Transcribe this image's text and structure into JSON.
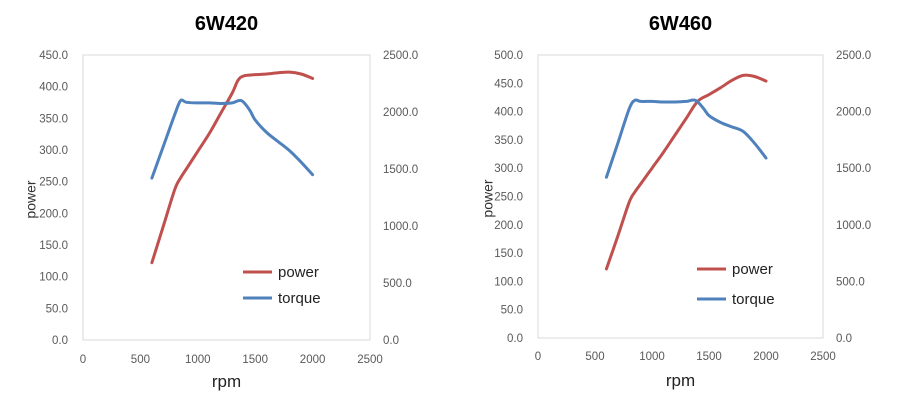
{
  "chart_data": [
    {
      "type": "line",
      "title": "6W420",
      "xlabel": "rpm",
      "ylabel": "power",
      "xlim": [
        0,
        2500
      ],
      "ylim": [
        0,
        450
      ],
      "y2lim": [
        0,
        2500
      ],
      "xtick_labels": [
        "0",
        "500",
        "1000",
        "1500",
        "2000",
        "2500"
      ],
      "ytick_labels": [
        "0.0",
        "50.0",
        "100.0",
        "150.0",
        "200.0",
        "250.0",
        "300.0",
        "350.0",
        "400.0",
        "450.0"
      ],
      "y2tick_labels": [
        "0.0",
        "500.0",
        "1000.0",
        "1500.0",
        "2000.0",
        "2500.0"
      ],
      "grid": false,
      "legend": "inside-lower-right",
      "series": [
        {
          "name": "power",
          "axis": "left",
          "color": "#c0504d",
          "x": [
            600,
            700,
            800,
            850,
            900,
            1000,
            1100,
            1200,
            1300,
            1350,
            1400,
            1500,
            1600,
            1700,
            1800,
            1900,
            2000
          ],
          "y": [
            122,
            180,
            238,
            256,
            270,
            298,
            326,
            358,
            390,
            410,
            417,
            419,
            420,
            422,
            423,
            420,
            413
          ]
        },
        {
          "name": "torque",
          "axis": "right",
          "color": "#4f81bd",
          "x": [
            600,
            700,
            800,
            850,
            900,
            1000,
            1100,
            1200,
            1300,
            1380,
            1450,
            1500,
            1600,
            1700,
            1800,
            1900,
            2000
          ],
          "y": [
            1420,
            1700,
            1980,
            2100,
            2085,
            2080,
            2080,
            2075,
            2080,
            2100,
            2020,
            1930,
            1820,
            1740,
            1660,
            1560,
            1450
          ]
        }
      ]
    },
    {
      "type": "line",
      "title": "6W460",
      "xlabel": "rpm",
      "ylabel": "power",
      "xlim": [
        0,
        2500
      ],
      "ylim": [
        0,
        500
      ],
      "y2lim": [
        0,
        2500
      ],
      "xtick_labels": [
        "0",
        "500",
        "1000",
        "1500",
        "2000",
        "2500"
      ],
      "ytick_labels": [
        "0.0",
        "50.0",
        "100.0",
        "150.0",
        "200.0",
        "250.0",
        "300.0",
        "350.0",
        "400.0",
        "450.0",
        "500.0"
      ],
      "y2tick_labels": [
        "0.0",
        "500.0",
        "1000.0",
        "1500.0",
        "2000.0",
        "2500.0"
      ],
      "grid": false,
      "legend": "inside-lower-right",
      "series": [
        {
          "name": "power",
          "axis": "left",
          "color": "#c0504d",
          "x": [
            600,
            700,
            800,
            850,
            900,
            1000,
            1100,
            1200,
            1300,
            1400,
            1500,
            1600,
            1700,
            1800,
            1900,
            2000
          ],
          "y": [
            122,
            180,
            240,
            258,
            272,
            300,
            328,
            358,
            388,
            418,
            430,
            442,
            455,
            464,
            462,
            454
          ]
        },
        {
          "name": "torque",
          "axis": "right",
          "color": "#4f81bd",
          "x": [
            600,
            700,
            800,
            850,
            900,
            1000,
            1100,
            1200,
            1300,
            1380,
            1450,
            1500,
            1600,
            1700,
            1800,
            1900,
            2000
          ],
          "y": [
            1420,
            1720,
            2025,
            2100,
            2090,
            2090,
            2085,
            2085,
            2090,
            2100,
            2030,
            1965,
            1905,
            1865,
            1825,
            1720,
            1590
          ]
        }
      ]
    }
  ]
}
